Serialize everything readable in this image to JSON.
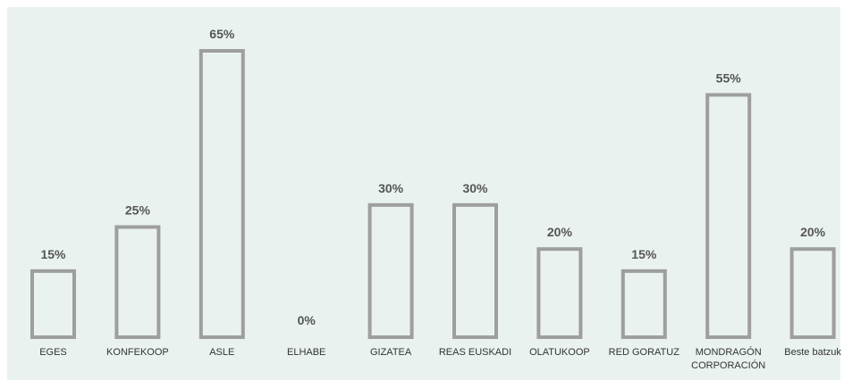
{
  "chart_data": {
    "type": "bar",
    "categories": [
      [
        "EGES"
      ],
      [
        "KONFEKOOP"
      ],
      [
        "ASLE"
      ],
      [
        "ELHABE"
      ],
      [
        "GIZATEA"
      ],
      [
        "REAS EUSKADI"
      ],
      [
        "OLATUKOOP"
      ],
      [
        "RED GORATUZ"
      ],
      [
        "MONDRAGÓN",
        "CORPORACIÓN"
      ],
      [
        "Beste batzuk"
      ]
    ],
    "values": [
      15,
      25,
      65,
      0,
      30,
      30,
      20,
      15,
      55,
      20
    ],
    "value_labels": [
      "15%",
      "25%",
      "65%",
      "0%",
      "30%",
      "30%",
      "20%",
      "15%",
      "55%",
      "20%"
    ],
    "ylim": [
      0,
      65
    ],
    "grid": false,
    "colors": {
      "background": "#e9f2ef",
      "bar_outline": "#9e9e9e"
    }
  }
}
